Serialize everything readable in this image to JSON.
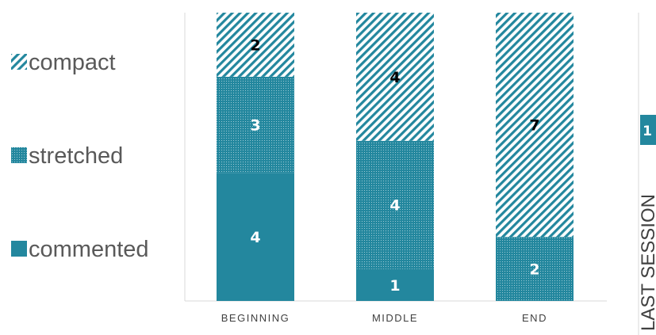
{
  "colors": {
    "teal": "#23879e",
    "text": "#595959",
    "axis": "#d9d9d9",
    "label_dark": "#000000",
    "label_light": "#ffffff"
  },
  "chart_data": {
    "type": "bar",
    "stacked": true,
    "orientation": "vertical",
    "categories": [
      "BEGINNING",
      "MIDDLE",
      "END"
    ],
    "series": [
      {
        "name": "commented",
        "values": [
          4,
          1,
          0
        ],
        "fill": "solid"
      },
      {
        "name": "stretched",
        "values": [
          3,
          4,
          2
        ],
        "fill": "dotted"
      },
      {
        "name": "compact",
        "values": [
          2,
          4,
          7
        ],
        "fill": "diagonal-stripes"
      }
    ],
    "ylim": [
      0,
      9
    ],
    "grid": false,
    "legend_placement": "left",
    "legend_order": [
      "compact",
      "stretched",
      "commented"
    ],
    "data_labels": true
  },
  "side_panel": {
    "label": "LAST SESSION",
    "partial_value": "1"
  }
}
